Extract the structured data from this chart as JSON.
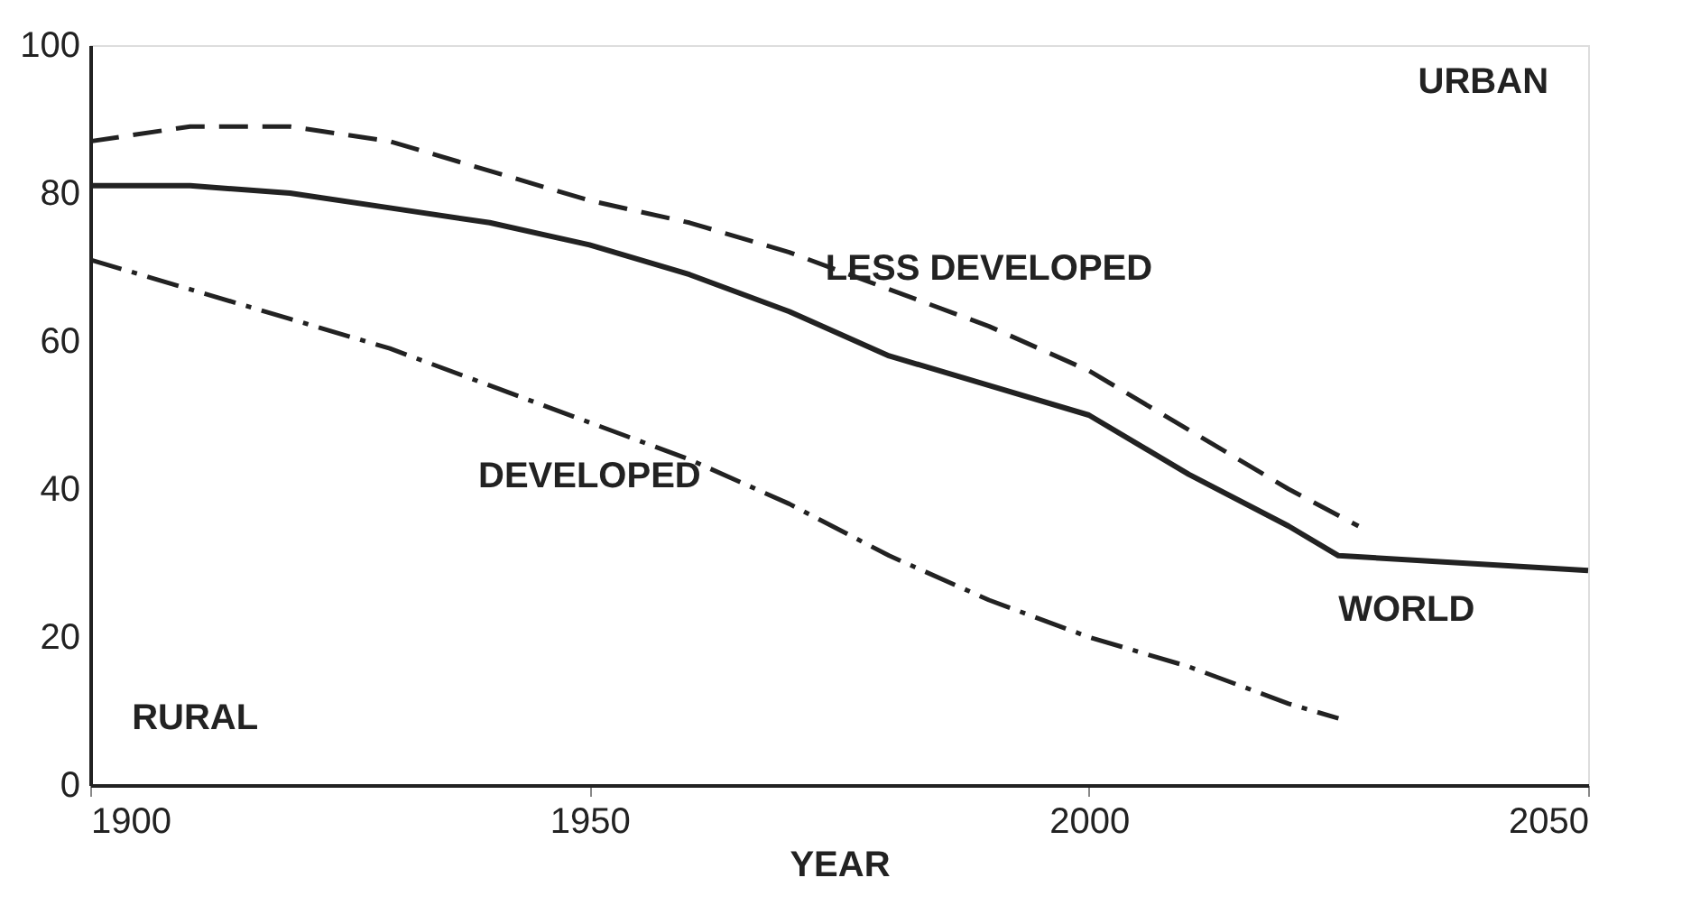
{
  "chart_data": {
    "type": "line",
    "xlabel": "YEAR",
    "x": [
      1900,
      1910,
      1920,
      1930,
      1940,
      1950,
      1960,
      1970,
      1980,
      1990,
      2000,
      2010,
      2020,
      2025,
      2050
    ],
    "series": [
      {
        "name": "WORLD",
        "color": "#222222",
        "line_style": "solid",
        "values": [
          81,
          81,
          80,
          78,
          76,
          73,
          69,
          64,
          58,
          54,
          50,
          42,
          35,
          31,
          29
        ]
      },
      {
        "name": "LESS DEVELOPED",
        "color": "#222222",
        "line_style": "dashed",
        "x": [
          1900,
          1910,
          1920,
          1930,
          1940,
          1950,
          1960,
          1970,
          1980,
          1990,
          2000,
          2010,
          2020,
          2027
        ],
        "values": [
          87,
          89,
          89,
          87,
          83,
          79,
          76,
          72,
          67,
          62,
          56,
          48,
          40,
          35
        ]
      },
      {
        "name": "DEVELOPED",
        "color": "#222222",
        "line_style": "dotted",
        "x": [
          1900,
          1910,
          1920,
          1930,
          1940,
          1950,
          1960,
          1970,
          1980,
          1990,
          2000,
          2010,
          2020,
          2025
        ],
        "values": [
          71,
          67,
          63,
          59,
          54,
          49,
          44,
          38,
          31,
          25,
          20,
          16,
          11,
          9
        ]
      }
    ],
    "annotations": [
      "URBAN",
      "RURAL"
    ],
    "xlim": [
      1900,
      2050
    ],
    "xticks": [
      1900,
      1950,
      2000,
      2050
    ],
    "ylim": [
      0,
      100
    ],
    "yticks": [
      0,
      20,
      40,
      60,
      80,
      100
    ],
    "grid": false,
    "marker": "none"
  }
}
